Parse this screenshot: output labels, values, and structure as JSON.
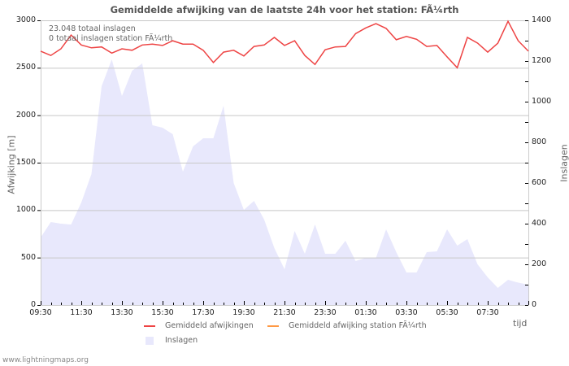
{
  "chart_data": {
    "type": "line",
    "title": "Gemiddelde afwijking van de laatste 24h voor het station: FÃ¼rth",
    "xlabel": "tijd",
    "ylabel": "Afwijking  [m]",
    "ylabel_right": "Inslagen",
    "ylim": [
      0,
      3000
    ],
    "ylim_right": [
      0,
      1400
    ],
    "yticks": [
      0,
      500,
      1000,
      1500,
      2000,
      2500,
      3000
    ],
    "yticks_right": [
      0,
      200,
      400,
      600,
      800,
      1000,
      1200,
      1400
    ],
    "xticks": [
      "09:30",
      "11:30",
      "13:30",
      "15:30",
      "17:30",
      "19:30",
      "21:30",
      "23:30",
      "01:30",
      "03:30",
      "05:30",
      "07:30"
    ],
    "grid": true,
    "legend_position": "bottom",
    "x_start": "09:30",
    "x_step_minutes": 30,
    "series": [
      {
        "name": "Gemiddeld afwijkingen",
        "type": "line",
        "axis": "left",
        "color": "#ee4444",
        "values": [
          2675,
          2630,
          2700,
          2845,
          2740,
          2710,
          2720,
          2655,
          2700,
          2685,
          2740,
          2750,
          2735,
          2785,
          2750,
          2750,
          2685,
          2555,
          2665,
          2685,
          2625,
          2725,
          2740,
          2820,
          2735,
          2785,
          2630,
          2535,
          2690,
          2720,
          2725,
          2860,
          2920,
          2965,
          2915,
          2795,
          2830,
          2800,
          2725,
          2735,
          2615,
          2500,
          2820,
          2760,
          2665,
          2760,
          2990,
          2785,
          2675
        ]
      },
      {
        "name": "Gemiddeld afwijking station FÃ¼rth",
        "type": "line",
        "axis": "left",
        "color": "#ff9944",
        "values": []
      },
      {
        "name": "Inslagen",
        "type": "area",
        "axis": "right",
        "color": "#e8e8fc",
        "values": [
          332,
          408,
          400,
          396,
          504,
          644,
          1076,
          1208,
          1028,
          1152,
          1188,
          884,
          872,
          840,
          656,
          780,
          820,
          820,
          980,
          600,
          468,
          512,
          420,
          280,
          176,
          364,
          252,
          396,
          252,
          252,
          316,
          216,
          232,
          232,
          372,
          260,
          160,
          160,
          260,
          264,
          372,
          292,
          324,
          200,
          136,
          84,
          124,
          110,
          100
        ]
      }
    ],
    "annotations": [
      "23.048 totaal inslagen",
      "0 totaal inslagen station FÃ¼rth"
    ]
  },
  "header": {
    "title": "Gemiddelde afwijking van de laatste 24h voor het station: FÃ¼rth"
  },
  "info": {
    "total_strikes": "23.048 totaal inslagen",
    "station_strikes": "0 totaal inslagen station FÃ¼rth"
  },
  "axes": {
    "left_label": "Afwijking  [m]",
    "right_label": "Inslagen",
    "x_label": "tijd",
    "left_ticks": [
      "3000",
      "2500",
      "2000",
      "1500",
      "1000",
      "500",
      "0"
    ],
    "right_ticks": [
      "1400",
      "1200",
      "1000",
      "800",
      "600",
      "400",
      "200",
      "0"
    ],
    "x_ticks": [
      "09:30",
      "11:30",
      "13:30",
      "15:30",
      "17:30",
      "19:30",
      "21:30",
      "23:30",
      "01:30",
      "03:30",
      "05:30",
      "07:30"
    ]
  },
  "legend": {
    "items": [
      {
        "label": "Gemiddeld afwijkingen",
        "color": "#ee4444"
      },
      {
        "label": "Gemiddeld afwijking station FÃ¼rth",
        "color": "#ff9944"
      },
      {
        "label": "Inslagen",
        "color": "#e8e8fc"
      }
    ]
  },
  "footer": {
    "text": "www.lightningmaps.org"
  }
}
